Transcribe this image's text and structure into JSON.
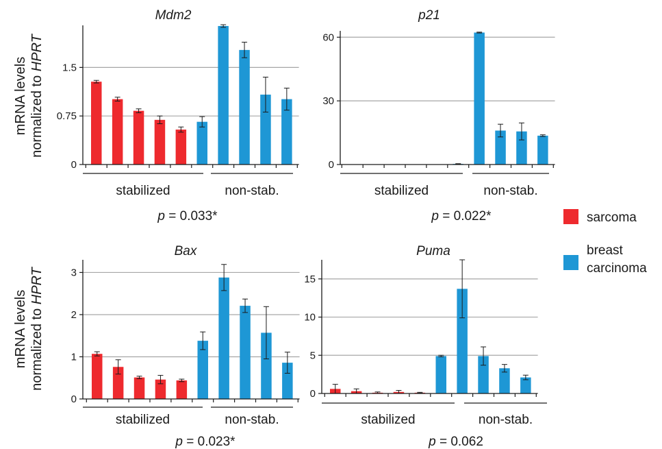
{
  "colors": {
    "sarcoma": "#ee2a2e",
    "breast_carcinoma": "#1e97d5",
    "grid": "#a6a6a6",
    "axis": "#1a1a1a"
  },
  "ylabel": {
    "line1": "mRNA levels",
    "line2_prefix": "normalized to ",
    "line2_italic": "HPRT"
  },
  "legend": {
    "items": [
      {
        "label_lines": [
          "sarcoma"
        ],
        "color": "#ee2a2e"
      },
      {
        "label_lines": [
          "breast",
          "carcinoma"
        ],
        "color": "#1e97d5"
      }
    ]
  },
  "chart_data": [
    {
      "type": "bar",
      "title": "Mdm2",
      "ylim": [
        0,
        2.15
      ],
      "yticks": [
        "0",
        "0.75",
        "1.5"
      ],
      "grid": true,
      "values": [
        1.28,
        1.01,
        0.83,
        0.69,
        0.54,
        0.66,
        2.14,
        1.77,
        1.08,
        1.01
      ],
      "errors": [
        0.02,
        0.03,
        0.03,
        0.06,
        0.04,
        0.08,
        0.02,
        0.12,
        0.27,
        0.17
      ],
      "colors": [
        "sarcoma",
        "sarcoma",
        "sarcoma",
        "sarcoma",
        "sarcoma",
        "breast_carcinoma",
        "breast_carcinoma",
        "breast_carcinoma",
        "breast_carcinoma",
        "breast_carcinoma"
      ],
      "groups": [
        {
          "label": "stabilized",
          "count": 6
        },
        {
          "label": "non-stab.",
          "count": 4
        }
      ],
      "pvalue": {
        "symbol": "p",
        "text": " = 0.033*"
      }
    },
    {
      "type": "bar",
      "title": "p21",
      "ylim": [
        0,
        63
      ],
      "yticks": [
        "0",
        "30",
        "60"
      ],
      "grid": true,
      "values": [
        0,
        0,
        0,
        0,
        0,
        0.3,
        62.2,
        16.0,
        15.6,
        13.6
      ],
      "errors": [
        0,
        0,
        0,
        0,
        0,
        0.1,
        0.2,
        3.0,
        4.0,
        0.4
      ],
      "colors": [
        "sarcoma",
        "sarcoma",
        "sarcoma",
        "sarcoma",
        "sarcoma",
        "breast_carcinoma",
        "breast_carcinoma",
        "breast_carcinoma",
        "breast_carcinoma",
        "breast_carcinoma"
      ],
      "groups": [
        {
          "label": "stabilized",
          "count": 6
        },
        {
          "label": "non-stab.",
          "count": 4
        }
      ],
      "pvalue": {
        "symbol": "p",
        "text": " = 0.022*"
      }
    },
    {
      "type": "bar",
      "title": "Bax",
      "ylim": [
        0,
        3.3
      ],
      "yticks": [
        "0",
        "1",
        "2",
        "3"
      ],
      "grid": true,
      "values": [
        1.07,
        0.76,
        0.51,
        0.46,
        0.44,
        1.38,
        2.88,
        2.21,
        1.57,
        0.86
      ],
      "errors": [
        0.05,
        0.17,
        0.03,
        0.1,
        0.03,
        0.21,
        0.31,
        0.16,
        0.62,
        0.25
      ],
      "colors": [
        "sarcoma",
        "sarcoma",
        "sarcoma",
        "sarcoma",
        "sarcoma",
        "breast_carcinoma",
        "breast_carcinoma",
        "breast_carcinoma",
        "breast_carcinoma",
        "breast_carcinoma"
      ],
      "groups": [
        {
          "label": "stabilized",
          "count": 6
        },
        {
          "label": "non-stab.",
          "count": 4
        }
      ],
      "pvalue": {
        "symbol": "p",
        "text": " = 0.023*"
      }
    },
    {
      "type": "bar",
      "title": "Puma",
      "ylim": [
        0,
        17.5
      ],
      "yticks": [
        "0",
        "5",
        "10",
        "15"
      ],
      "grid": true,
      "values": [
        0.6,
        0.3,
        0.1,
        0.2,
        0.1,
        4.9,
        13.7,
        4.9,
        3.3,
        2.1
      ],
      "errors": [
        0.6,
        0.3,
        0.1,
        0.2,
        0.05,
        0.1,
        3.8,
        1.2,
        0.5,
        0.3
      ],
      "colors": [
        "sarcoma",
        "sarcoma",
        "sarcoma",
        "sarcoma",
        "sarcoma",
        "breast_carcinoma",
        "breast_carcinoma",
        "breast_carcinoma",
        "breast_carcinoma",
        "breast_carcinoma"
      ],
      "groups": [
        {
          "label": "stabilized",
          "count": 6
        },
        {
          "label": "non-stab.",
          "count": 4
        }
      ],
      "pvalue": {
        "symbol": "p",
        "text": " = 0.062"
      }
    }
  ]
}
